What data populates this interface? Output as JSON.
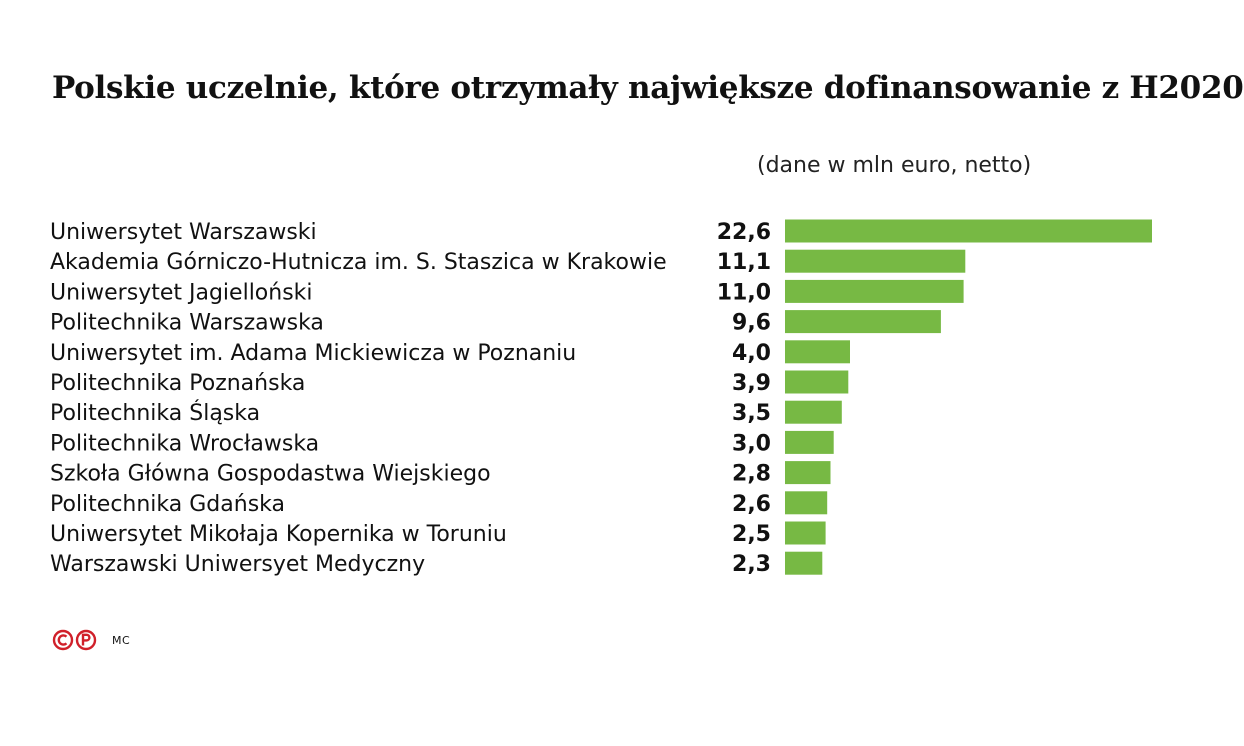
{
  "title": "Polskie uczelnie, które otrzymały największe dofinansowanie z H2020",
  "unit_note": "(dane w mln euro, netto)",
  "credit": "MC",
  "logo_icon": "cp-logo-icon",
  "colors": {
    "bar": "#77b944",
    "logo": "#d0202a",
    "text": "#111111"
  },
  "chart_data": {
    "type": "bar",
    "orientation": "horizontal",
    "title": "Polskie uczelnie, które otrzymały największe dofinansowanie z H2020",
    "subtitle": "(dane w mln euro, netto)",
    "categories": [
      "Uniwersytet Warszawski",
      "Akademia Górniczo-Hutnicza im. S. Staszica w Krakowie",
      "Uniwersytet Jagielloński",
      "Politechnika Warszawska",
      "Uniwersytet im. Adama Mickiewicza w Poznaniu",
      "Politechnika Poznańska",
      "Politechnika Śląska",
      "Politechnika Wrocławska",
      "Szkoła Główna Gospodastwa Wiejskiego",
      "Politechnika Gdańska",
      "Uniwersytet Mikołaja Kopernika w Toruniu",
      "Warszawski Uniwersyet Medyczny"
    ],
    "values": [
      22.6,
      11.1,
      11.0,
      9.6,
      4.0,
      3.9,
      3.5,
      3.0,
      2.8,
      2.6,
      2.5,
      2.3
    ],
    "value_labels": [
      "22,6",
      "11,1",
      "11,0",
      "9,6",
      "4,0",
      "3,9",
      "3,5",
      "3,0",
      "2,8",
      "2,6",
      "2,5",
      "2,3"
    ],
    "xlim": [
      0,
      22.6
    ],
    "grid": false,
    "legend": "none",
    "xlabel": "",
    "ylabel": ""
  }
}
